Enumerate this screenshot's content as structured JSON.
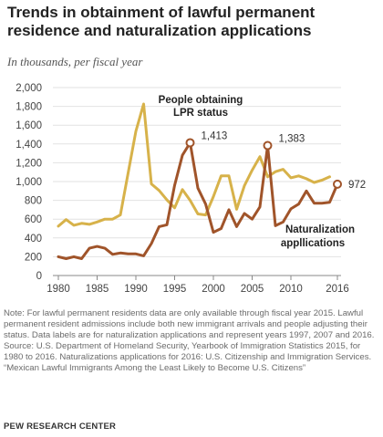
{
  "chart_data": {
    "type": "line",
    "title": "Trends in obtainment of lawful permanent residence and naturalization applications",
    "subtitle": "In thousands, per fiscal year",
    "ylim": [
      0,
      2000
    ],
    "yticks": [
      0,
      200,
      400,
      600,
      800,
      "1,000",
      "1,200",
      "1,400",
      "1,600",
      "1,800",
      "2,000"
    ],
    "xticks": [
      1980,
      1985,
      1990,
      1995,
      2000,
      2005,
      2010,
      2016
    ],
    "x_range": [
      1980,
      2016
    ],
    "grid": true,
    "series": [
      {
        "name": "People obtaining LPR status",
        "color": "#d7b24a",
        "x": [
          1980,
          1981,
          1982,
          1983,
          1984,
          1985,
          1986,
          1987,
          1988,
          1989,
          1990,
          1991,
          1992,
          1993,
          1994,
          1995,
          1996,
          1997,
          1998,
          1999,
          2000,
          2001,
          2002,
          2003,
          2004,
          2005,
          2006,
          2007,
          2008,
          2009,
          2010,
          2011,
          2012,
          2013,
          2014,
          2015
        ],
        "values": [
          525,
          595,
          535,
          555,
          545,
          570,
          600,
          600,
          645,
          1090,
          1535,
          1825,
          975,
          905,
          805,
          720,
          915,
          800,
          655,
          645,
          840,
          1060,
          1060,
          705,
          955,
          1120,
          1265,
          1050,
          1105,
          1130,
          1040,
          1060,
          1030,
          990,
          1015,
          1050
        ]
      },
      {
        "name": "Naturalization applications",
        "color": "#a0542a",
        "x": [
          1980,
          1981,
          1982,
          1983,
          1984,
          1985,
          1986,
          1987,
          1988,
          1989,
          1990,
          1991,
          1992,
          1993,
          1994,
          1995,
          1996,
          1997,
          1998,
          1999,
          2000,
          2001,
          2002,
          2003,
          2004,
          2005,
          2006,
          2007,
          2008,
          2009,
          2010,
          2011,
          2012,
          2013,
          2014,
          2015,
          2016
        ],
        "values": [
          200,
          180,
          200,
          180,
          290,
          310,
          290,
          225,
          240,
          230,
          230,
          210,
          340,
          520,
          540,
          960,
          1280,
          1413,
          930,
          760,
          460,
          500,
          700,
          520,
          660,
          600,
          730,
          1383,
          530,
          570,
          710,
          760,
          900,
          770,
          770,
          780,
          972
        ]
      }
    ],
    "annotations": [
      {
        "series": "Naturalization applications",
        "x": 1997,
        "label": "1,413"
      },
      {
        "series": "Naturalization applications",
        "x": 2007,
        "label": "1,383"
      },
      {
        "series": "Naturalization applications",
        "x": 2016,
        "label": "972"
      }
    ],
    "series_labels": {
      "lpr_line1": "People obtaining",
      "lpr_line2": "LPR status",
      "nat_line1": "Naturalization",
      "nat_line2": "appllications"
    }
  },
  "notes": {
    "note": "Note: For lawful permanent residents data are only available through fiscal year 2015. Lawful permanent resident admissions include both new immigrant arrivals and people adjusting their status. Data labels are for naturalization applications and represent years 1997, 2007 and 2016.",
    "source": "Source: U.S. Department of Homeland Security, Yearbook of Immigration Statistics 2015, for 1980 to 2016. Naturalizations applications for 2016: U.S. Citizenship and Immigration Services.",
    "report": "“Mexican Lawful Immigrants Among the Least Likely to Become U.S. Citizens”"
  },
  "org": "PEW RESEARCH CENTER"
}
